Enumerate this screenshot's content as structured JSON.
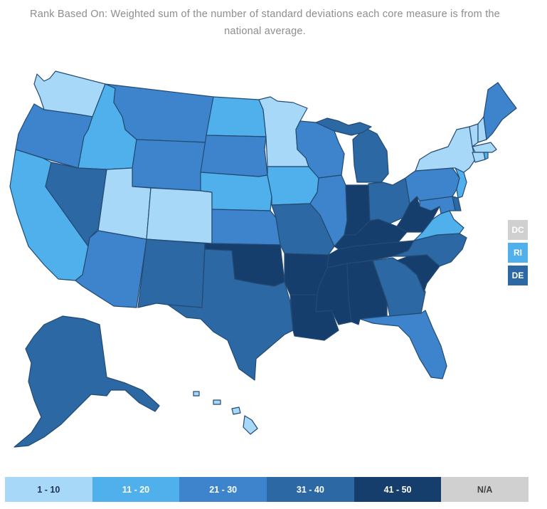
{
  "subtitle": "Rank Based On: Weighted sum of the number of standard deviations each core measure is from the national average.",
  "colors": {
    "r1_10": "#a8d8f8",
    "r11_20": "#4fb0ec",
    "r21_30": "#3d84cc",
    "r31_40": "#2c68a3",
    "r41_50": "#153e6d",
    "na": "#d0d0d0"
  },
  "small_states": [
    {
      "abbr": "DC",
      "range": "na"
    },
    {
      "abbr": "RI",
      "range": "r11_20"
    },
    {
      "abbr": "DE",
      "range": "r31_40"
    }
  ],
  "legend": [
    {
      "label": "1 - 10",
      "range": "r1_10",
      "text_color": "#1e3550"
    },
    {
      "label": "11 - 20",
      "range": "r11_20",
      "text_color": "#ffffff"
    },
    {
      "label": "21 - 30",
      "range": "r21_30",
      "text_color": "#ffffff"
    },
    {
      "label": "31 - 40",
      "range": "r31_40",
      "text_color": "#ffffff"
    },
    {
      "label": "41 - 50",
      "range": "r41_50",
      "text_color": "#ffffff"
    },
    {
      "label": "N/A",
      "range": "na",
      "text_color": "#444444"
    }
  ],
  "state_ranges": {
    "WA": "r1_10",
    "OR": "r21_30",
    "CA": "r11_20",
    "ID": "r11_20",
    "NV": "r31_40",
    "MT": "r21_30",
    "WY": "r21_30",
    "UT": "r1_10",
    "CO": "r1_10",
    "AZ": "r21_30",
    "NM": "r31_40",
    "ND": "r11_20",
    "SD": "r21_30",
    "NE": "r11_20",
    "KS": "r21_30",
    "OK": "r41_50",
    "TX": "r31_40",
    "MN": "r1_10",
    "IA": "r11_20",
    "MO": "r31_40",
    "AR": "r41_50",
    "LA": "r41_50",
    "WI": "r21_30",
    "IL": "r21_30",
    "MI": "r31_40",
    "IN": "r41_50",
    "OH": "r31_40",
    "KY": "r41_50",
    "TN": "r41_50",
    "MS": "r41_50",
    "AL": "r41_50",
    "GA": "r31_40",
    "FL": "r21_30",
    "SC": "r41_50",
    "NC": "r31_40",
    "VA": "r11_20",
    "WV": "r41_50",
    "PA": "r21_30",
    "NY": "r1_10",
    "VT": "r1_10",
    "NH": "r1_10",
    "ME": "r21_30",
    "MA": "r1_10",
    "CT": "r1_10",
    "NJ": "r11_20",
    "MD": "r21_30",
    "AK": "r31_40",
    "HI": "r1_10"
  }
}
